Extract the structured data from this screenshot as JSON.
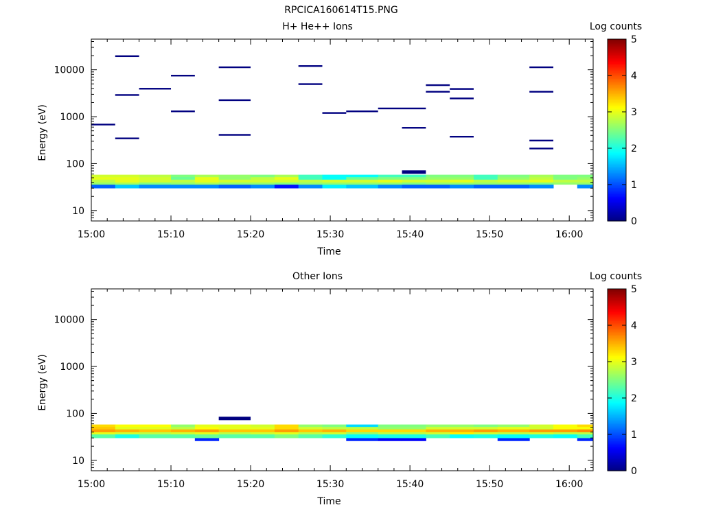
{
  "title": "RPCICA160614T15.PNG",
  "chart_data": [
    {
      "type": "heatmap",
      "title": "H+ He++ Ions",
      "xlabel": "Time",
      "ylabel": "Energy (eV)",
      "yscale": "log",
      "ylim": [
        6,
        45000
      ],
      "xlim": [
        "15:00",
        "16:03"
      ],
      "xticks": [
        "15:00",
        "15:10",
        "15:20",
        "15:30",
        "15:40",
        "15:50",
        "16:00"
      ],
      "yticks": [
        "10",
        "100",
        "1000",
        "10000"
      ],
      "colorbar": {
        "label": "Log counts",
        "min": 0,
        "max": 5,
        "ticks": [
          "0",
          "1",
          "2",
          "3",
          "4",
          "5"
        ]
      },
      "grid": false,
      "series": [
        {
          "e_lo": 30,
          "e_hi": 36,
          "values": [
            1.1,
            1.6,
            1.3,
            1.3,
            1.3,
            1.1,
            1.3,
            0.7,
            1.3,
            1.8,
            1.6,
            1.3,
            1.1,
            1.1,
            1.3,
            1.1,
            1.1,
            1.3,
            null,
            1.3
          ]
        },
        {
          "e_lo": 36,
          "e_hi": 40,
          "values": [
            2.6,
            2.7,
            2.5,
            2.6,
            2.7,
            2.6,
            2.6,
            2.5,
            2.6,
            2.6,
            2.6,
            2.6,
            2.5,
            2.6,
            2.6,
            2.6,
            2.6,
            2.5,
            2.6,
            2.6
          ]
        },
        {
          "e_lo": 40,
          "e_hi": 46,
          "values": [
            2.8,
            3.0,
            2.9,
            2.8,
            3.0,
            2.9,
            2.9,
            2.9,
            2.8,
            2.9,
            2.9,
            3.0,
            2.9,
            2.9,
            3.0,
            2.8,
            2.9,
            3.0,
            2.8,
            2.8
          ]
        },
        {
          "e_lo": 46,
          "e_hi": 52,
          "values": [
            3.0,
            3.0,
            2.9,
            2.4,
            3.0,
            2.6,
            2.8,
            3.0,
            2.2,
            1.9,
            2.4,
            2.5,
            2.5,
            2.6,
            2.6,
            2.2,
            2.6,
            2.8,
            2.5,
            2.6
          ]
        },
        {
          "e_lo": 52,
          "e_hi": 58,
          "values": [
            2.9,
            2.9,
            2.8,
            2.5,
            2.7,
            2.6,
            2.5,
            2.7,
            2.2,
            1.9,
            1.9,
            2.2,
            2.2,
            2.5,
            2.5,
            2.2,
            2.5,
            2.7,
            2.5,
            2.5
          ]
        }
      ],
      "time_bins": [
        "15:00",
        "15:03",
        "15:06",
        "15:10",
        "15:13",
        "15:16",
        "15:20",
        "15:23",
        "15:26",
        "15:29",
        "15:32",
        "15:36",
        "15:39",
        "15:42",
        "15:45",
        "15:48",
        "15:51",
        "15:55",
        "15:58",
        "16:01",
        "16:04"
      ],
      "events": [
        {
          "bin": 0,
          "energy": 680
        },
        {
          "bin": 1,
          "energy": 19500
        },
        {
          "bin": 1,
          "energy": 2900
        },
        {
          "bin": 1,
          "energy": 345
        },
        {
          "bin": 2,
          "energy": 3950
        },
        {
          "bin": 3,
          "energy": 7500
        },
        {
          "bin": 3,
          "energy": 1300
        },
        {
          "bin": 5,
          "energy": 11300
        },
        {
          "bin": 5,
          "energy": 2250
        },
        {
          "bin": 5,
          "energy": 410
        },
        {
          "bin": 8,
          "energy": 12000
        },
        {
          "bin": 8,
          "energy": 4950
        },
        {
          "bin": 9,
          "energy": 1200
        },
        {
          "bin": 10,
          "energy": 1300
        },
        {
          "bin": 11,
          "energy": 1500
        },
        {
          "bin": 12,
          "energy": 1500
        },
        {
          "bin": 12,
          "energy": 580
        },
        {
          "bin": 12,
          "energy": 66,
          "thick": true
        },
        {
          "bin": 13,
          "energy": 4700
        },
        {
          "bin": 13,
          "energy": 3400
        },
        {
          "bin": 14,
          "energy": 3900
        },
        {
          "bin": 14,
          "energy": 2450
        },
        {
          "bin": 14,
          "energy": 375
        },
        {
          "bin": 17,
          "energy": 11300
        },
        {
          "bin": 17,
          "energy": 3400
        },
        {
          "bin": 17,
          "energy": 310
        },
        {
          "bin": 17,
          "energy": 210
        }
      ]
    },
    {
      "type": "heatmap",
      "title": "Other Ions",
      "xlabel": "Time",
      "ylabel": "Energy (eV)",
      "yscale": "log",
      "ylim": [
        6,
        45000
      ],
      "xlim": [
        "15:00",
        "16:03"
      ],
      "xticks": [
        "15:00",
        "15:10",
        "15:20",
        "15:30",
        "15:40",
        "15:50",
        "16:00"
      ],
      "yticks": [
        "10",
        "100",
        "1000",
        "10000"
      ],
      "colorbar": {
        "label": "Log counts",
        "min": 0,
        "max": 5,
        "ticks": [
          "0",
          "1",
          "2",
          "3",
          "4",
          "5"
        ]
      },
      "grid": false,
      "series": [
        {
          "e_lo": 26,
          "e_hi": 30,
          "values": [
            null,
            null,
            null,
            null,
            0.8,
            null,
            null,
            null,
            null,
            null,
            0.8,
            0.6,
            0.6,
            null,
            null,
            null,
            0.8,
            null,
            null,
            0.8
          ]
        },
        {
          "e_lo": 30,
          "e_hi": 36,
          "values": [
            2.3,
            2.0,
            2.3,
            2.3,
            2.4,
            2.3,
            2.3,
            2.5,
            2.3,
            2.1,
            1.9,
            2.0,
            2.0,
            2.2,
            1.9,
            2.0,
            1.9,
            2.0,
            1.9,
            2.2
          ]
        },
        {
          "e_lo": 36,
          "e_hi": 40,
          "values": [
            3.0,
            2.9,
            2.8,
            2.9,
            3.0,
            2.8,
            2.9,
            3.0,
            2.8,
            2.9,
            2.6,
            2.8,
            2.8,
            2.9,
            3.2,
            2.9,
            2.8,
            2.9,
            2.8,
            2.8
          ]
        },
        {
          "e_lo": 40,
          "e_hi": 46,
          "values": [
            3.6,
            3.5,
            3.4,
            3.5,
            3.6,
            3.4,
            3.4,
            3.6,
            3.4,
            3.5,
            3.3,
            3.3,
            3.3,
            3.5,
            3.5,
            3.6,
            3.5,
            3.6,
            3.6,
            3.7
          ]
        },
        {
          "e_lo": 46,
          "e_hi": 52,
          "values": [
            3.4,
            3.0,
            3.0,
            2.8,
            3.1,
            3.0,
            3.0,
            3.3,
            2.9,
            2.8,
            2.8,
            2.6,
            2.6,
            2.9,
            2.9,
            2.9,
            3.0,
            2.9,
            3.1,
            3.1
          ]
        },
        {
          "e_lo": 52,
          "e_hi": 58,
          "values": [
            3.3,
            3.1,
            3.1,
            2.6,
            3.0,
            3.0,
            2.9,
            3.3,
            2.6,
            2.5,
            1.7,
            2.5,
            2.5,
            2.6,
            2.6,
            2.5,
            2.6,
            2.9,
            3.1,
            3.3
          ]
        }
      ],
      "time_bins": [
        "15:00",
        "15:03",
        "15:06",
        "15:10",
        "15:13",
        "15:16",
        "15:20",
        "15:23",
        "15:26",
        "15:29",
        "15:32",
        "15:36",
        "15:39",
        "15:42",
        "15:45",
        "15:48",
        "15:51",
        "15:55",
        "15:58",
        "16:01",
        "16:04"
      ],
      "events": [
        {
          "bin": 5,
          "energy": 78,
          "thick": true
        }
      ]
    }
  ]
}
